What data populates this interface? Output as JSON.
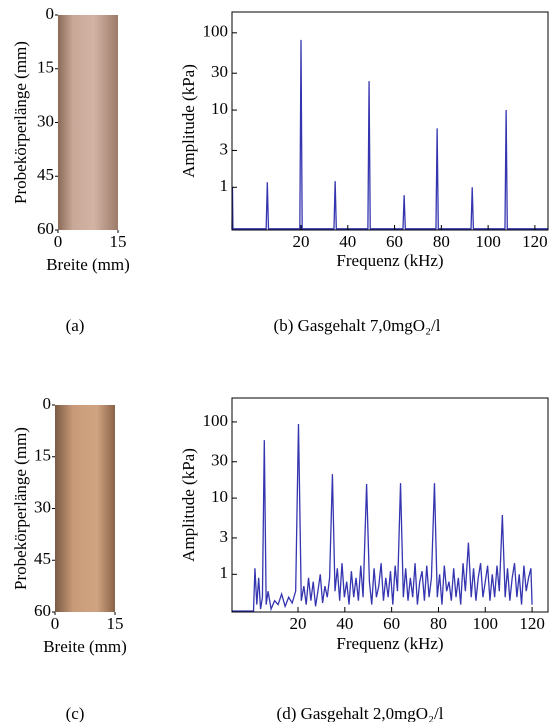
{
  "chart_data": [
    {
      "type": "photo",
      "ylabel": "Probekörperlänge (mm)",
      "xlabel": "Breite (mm)",
      "xlim": [
        0,
        15
      ],
      "ylim": [
        0,
        60
      ],
      "xticks": [
        0,
        15
      ],
      "yticks": [
        0,
        15,
        30,
        45,
        60
      ],
      "caption": "(a)"
    },
    {
      "type": "line",
      "ylabel": "Amplitude (kPa)",
      "xlabel": "Frequenz (kHz)",
      "log_y": true,
      "color": "#3535b0",
      "xlim": [
        -9.5,
        125.6
      ],
      "ylim": [
        0.28,
        186
      ],
      "xticks": [
        20,
        40,
        60,
        80,
        100,
        120
      ],
      "yticks": [
        1,
        3,
        10,
        30,
        100
      ],
      "x": [
        -9.5,
        -9.3,
        -9.1,
        5.1,
        5.6,
        6.1,
        19.5,
        20,
        20.5,
        34.1,
        34.6,
        35.1,
        48.6,
        49.1,
        49.6,
        63.6,
        64.1,
        64.6,
        77.7,
        78.2,
        78.7,
        92.7,
        93.2,
        93.7,
        107.2,
        107.7,
        108.2,
        125.6
      ],
      "values": [
        0.29,
        1.0,
        0.29,
        0.29,
        1.16,
        0.29,
        0.29,
        81,
        0.29,
        0.29,
        1.2,
        0.29,
        0.29,
        23.7,
        0.29,
        0.29,
        0.79,
        0.29,
        0.29,
        5.8,
        0.29,
        0.29,
        1.0,
        0.29,
        0.29,
        10,
        0.29,
        0.29
      ],
      "caption": "(b) Gasgehalt 7,0mgO₂/l"
    },
    {
      "type": "photo",
      "ylabel": "Probekörperlänge (mm)",
      "xlabel": "Breite (mm)",
      "xlim": [
        0,
        15
      ],
      "ylim": [
        0,
        60
      ],
      "xticks": [
        0,
        15
      ],
      "yticks": [
        0,
        15,
        30,
        45,
        60
      ],
      "caption": "(c)"
    },
    {
      "type": "line",
      "ylabel": "Amplitude (kPa)",
      "xlabel": "Frequenz (kHz)",
      "log_y": true,
      "color": "#3535b0",
      "xlim": [
        -8.2,
        126.8
      ],
      "ylim": [
        0.32,
        206
      ],
      "xticks": [
        20,
        40,
        60,
        80,
        100,
        120
      ],
      "yticks": [
        1,
        3,
        10,
        30,
        100
      ],
      "x": [
        -8.2,
        1.0,
        1.6,
        2.4,
        3.2,
        4.0,
        4.8,
        5.6,
        6.4,
        7.2,
        8.5,
        10,
        11.5,
        13,
        14.5,
        16,
        17.5,
        19,
        20.2,
        21.4,
        22.5,
        23.5,
        24.5,
        25.5,
        26.5,
        27.5,
        28.5,
        29.5,
        30.5,
        31.5,
        32.5,
        33.5,
        34.7,
        35.8,
        36.8,
        37.8,
        38.8,
        39.8,
        40.8,
        41.8,
        42.8,
        43.8,
        44.8,
        45.8,
        46.8,
        47.8,
        49.3,
        50.5,
        51.5,
        52.5,
        53.5,
        54.5,
        55.5,
        56.5,
        57.5,
        58.5,
        59.5,
        60.5,
        61.5,
        62.5,
        63.8,
        65,
        66,
        67,
        68,
        69,
        70,
        71,
        72,
        73,
        74,
        75,
        76,
        77,
        78.3,
        79.5,
        80.5,
        81.5,
        82.5,
        83.5,
        84.5,
        85.5,
        86.5,
        87.5,
        88.5,
        89.5,
        90.5,
        91.5,
        92.8,
        94,
        95,
        96,
        97,
        98,
        99,
        100,
        101,
        102,
        103,
        104,
        105,
        106,
        107.3,
        108.5,
        109.5,
        110.5,
        111.5,
        112.5,
        113.5,
        114.5,
        115.5,
        116.5,
        117.5,
        118.5,
        119.5,
        120
      ],
      "values": [
        0.33,
        0.33,
        1.2,
        0.4,
        0.9,
        0.35,
        0.5,
        57.6,
        0.4,
        0.6,
        0.35,
        0.45,
        0.4,
        0.55,
        0.38,
        0.5,
        0.42,
        0.6,
        94,
        0.45,
        0.7,
        0.4,
        0.9,
        0.45,
        0.8,
        0.38,
        0.6,
        1.0,
        0.42,
        0.7,
        0.5,
        0.9,
        20.6,
        0.6,
        1.2,
        0.45,
        1.4,
        0.5,
        0.8,
        0.4,
        1.1,
        0.5,
        0.9,
        0.45,
        1.3,
        0.5,
        15.3,
        0.8,
        0.4,
        1.2,
        0.5,
        0.7,
        1.4,
        0.45,
        0.9,
        0.5,
        1.1,
        0.4,
        1.3,
        0.6,
        15.7,
        0.5,
        1.2,
        0.45,
        0.9,
        0.5,
        1.4,
        0.4,
        0.8,
        1.1,
        0.45,
        1.3,
        0.5,
        0.9,
        15.7,
        0.5,
        1.0,
        0.4,
        1.3,
        0.6,
        0.8,
        0.45,
        1.2,
        0.5,
        0.9,
        0.4,
        1.4,
        0.6,
        2.6,
        0.5,
        1.2,
        0.45,
        0.9,
        1.4,
        0.5,
        0.8,
        1.3,
        0.45,
        1.0,
        0.5,
        1.3,
        0.6,
        6.0,
        0.5,
        1.2,
        0.45,
        0.9,
        1.4,
        0.5,
        1.0,
        0.4,
        1.3,
        0.6,
        0.9,
        1.2,
        0.4
      ],
      "caption": "(d) Gasgehalt 2,0mgO₂/l"
    }
  ]
}
